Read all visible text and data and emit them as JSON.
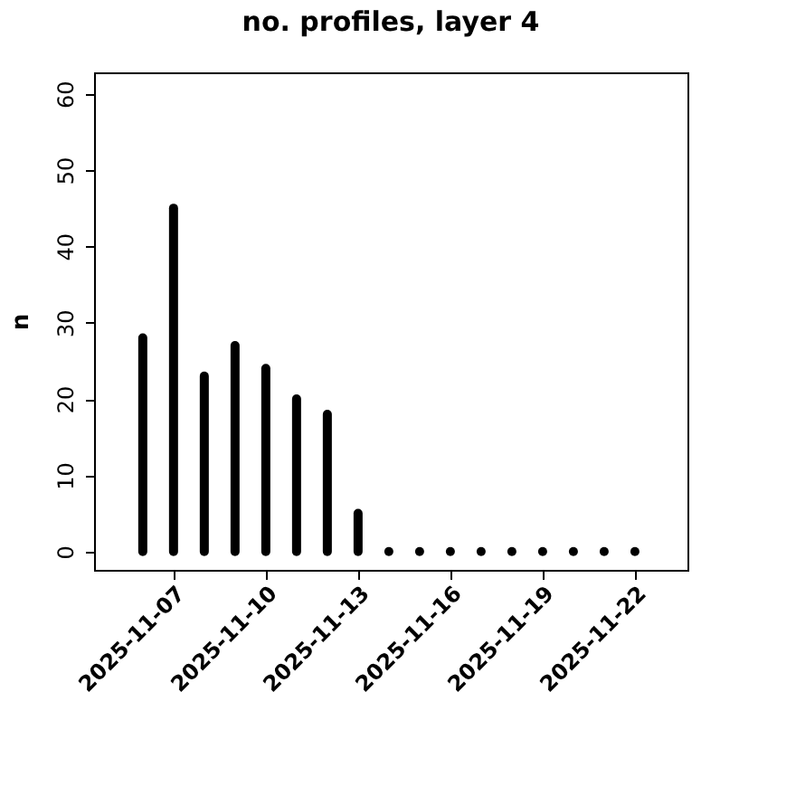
{
  "chart_data": {
    "type": "bar",
    "title": "no. profiles, layer 4",
    "ylabel": "n",
    "x": [
      "2025-11-06",
      "2025-11-07",
      "2025-11-08",
      "2025-11-09",
      "2025-11-10",
      "2025-11-11",
      "2025-11-12",
      "2025-11-13",
      "2025-11-14",
      "2025-11-15",
      "2025-11-16",
      "2025-11-17",
      "2025-11-18",
      "2025-11-19",
      "2025-11-20",
      "2025-11-21",
      "2025-11-22"
    ],
    "values": [
      28,
      45,
      23,
      27,
      24,
      20,
      18,
      5,
      0,
      0,
      0,
      0,
      0,
      0,
      0,
      0,
      0
    ],
    "color": "#000000",
    "xlim": [
      "2025-11-04T10:00",
      "2025-11-23T17:00"
    ],
    "xticks": [
      "2025-11-07",
      "2025-11-10",
      "2025-11-13",
      "2025-11-16",
      "2025-11-19",
      "2025-11-22"
    ],
    "ylim": [
      -2.4,
      62.8
    ],
    "yticks": [
      0,
      10,
      20,
      30,
      40,
      50,
      60
    ],
    "grid": false
  }
}
